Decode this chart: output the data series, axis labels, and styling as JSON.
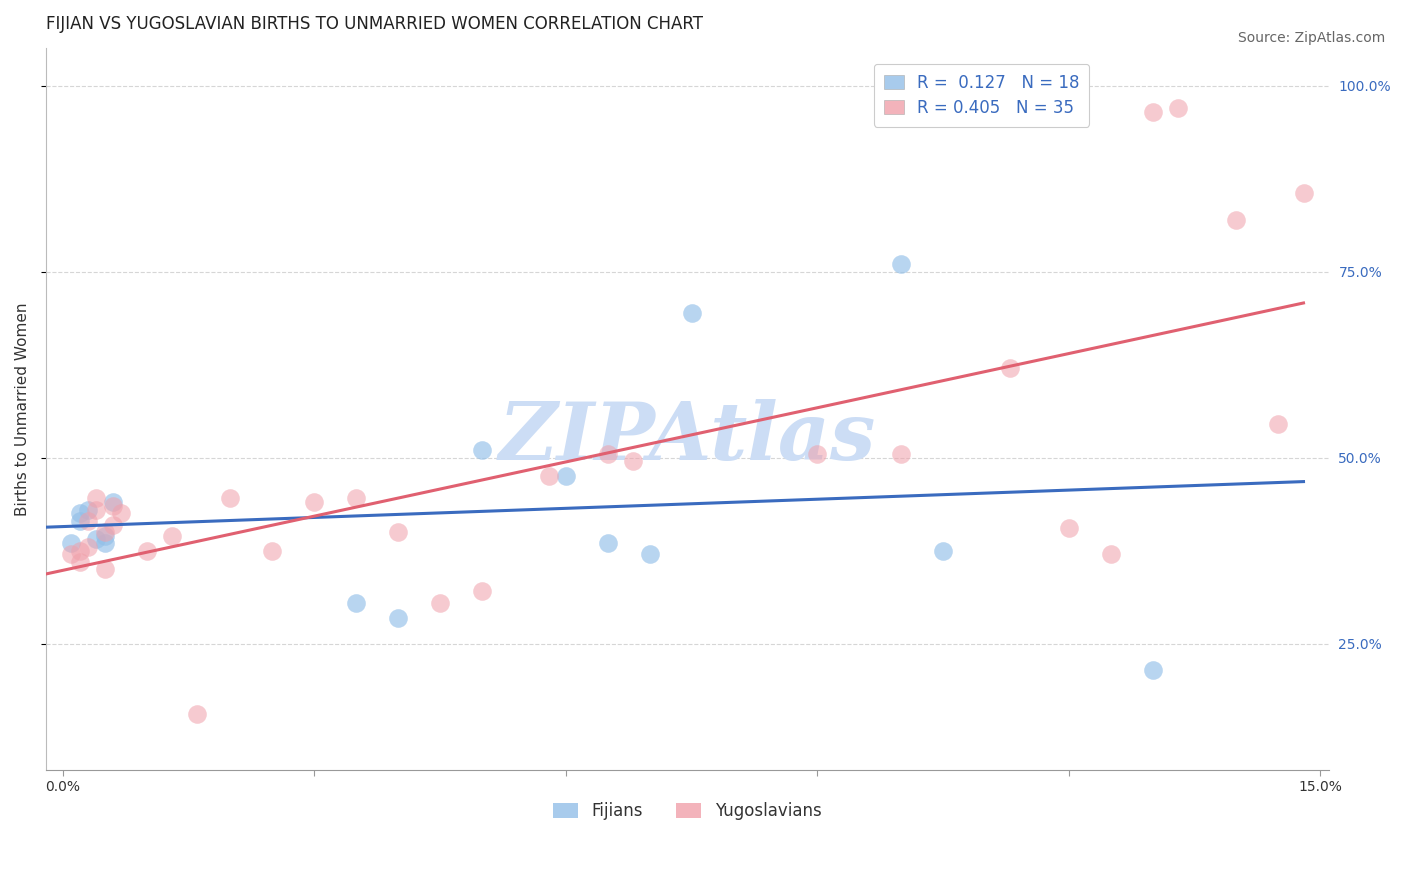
{
  "title": "FIJIAN VS YUGOSLAVIAN BIRTHS TO UNMARRIED WOMEN CORRELATION CHART",
  "source_text": "Source: ZipAtlas.com",
  "ylabel": "Births to Unmarried Women",
  "xlim": [
    -0.002,
    0.151
  ],
  "ylim": [
    0.08,
    1.05
  ],
  "yticks_right": [
    0.25,
    0.5,
    0.75,
    1.0
  ],
  "ytick_labels_right": [
    "25.0%",
    "50.0%",
    "75.0%",
    "100.0%"
  ],
  "fijian_color": "#92bfe8",
  "yugoslavian_color": "#f0a0aa",
  "fijian_line_color": "#3a6bbf",
  "yugoslavian_line_color": "#e06070",
  "background_color": "#ffffff",
  "grid_color": "#cccccc",
  "watermark_text": "ZIPAtlas",
  "watermark_color": "#ccddf5",
  "legend_R_fijian": "0.127",
  "legend_N_fijian": "18",
  "legend_R_yugoslavian": "0.405",
  "legend_N_yugoslavian": "35",
  "legend_label_fijian": "Fijians",
  "legend_label_yugoslavian": "Yugoslavians",
  "fijian_x": [
    0.001,
    0.002,
    0.002,
    0.003,
    0.004,
    0.005,
    0.005,
    0.006,
    0.035,
    0.04,
    0.05,
    0.06,
    0.065,
    0.07,
    0.075,
    0.1,
    0.105,
    0.13
  ],
  "fijian_y": [
    0.385,
    0.415,
    0.425,
    0.43,
    0.39,
    0.385,
    0.395,
    0.44,
    0.305,
    0.285,
    0.51,
    0.475,
    0.385,
    0.37,
    0.695,
    0.76,
    0.375,
    0.215
  ],
  "yugoslav_x": [
    0.001,
    0.002,
    0.002,
    0.003,
    0.003,
    0.004,
    0.004,
    0.005,
    0.005,
    0.006,
    0.006,
    0.007,
    0.01,
    0.013,
    0.016,
    0.02,
    0.025,
    0.03,
    0.035,
    0.04,
    0.045,
    0.05,
    0.058,
    0.065,
    0.068,
    0.09,
    0.1,
    0.113,
    0.12,
    0.125,
    0.13,
    0.133,
    0.14,
    0.145,
    0.148
  ],
  "yugoslav_y": [
    0.37,
    0.36,
    0.375,
    0.38,
    0.415,
    0.43,
    0.445,
    0.35,
    0.4,
    0.41,
    0.435,
    0.425,
    0.375,
    0.395,
    0.155,
    0.445,
    0.375,
    0.44,
    0.445,
    0.4,
    0.305,
    0.32,
    0.475,
    0.505,
    0.495,
    0.505,
    0.505,
    0.62,
    0.405,
    0.37,
    0.965,
    0.97,
    0.82,
    0.545,
    0.855
  ],
  "title_fontsize": 12,
  "axis_label_fontsize": 11,
  "tick_fontsize": 10,
  "legend_fontsize": 12,
  "source_fontsize": 10
}
